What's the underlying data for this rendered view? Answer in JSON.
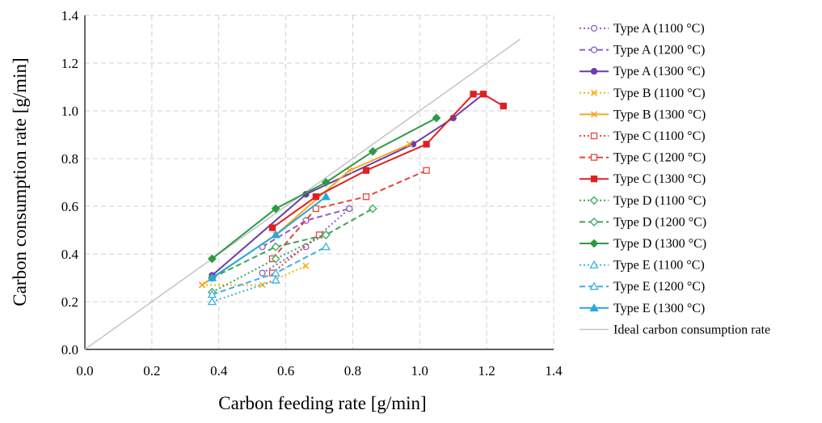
{
  "chart_data": {
    "type": "line",
    "title": "",
    "xlabel": "Carbon feeding rate [g/min]",
    "ylabel": "Carbon consumption rate [g/min]",
    "xlim": [
      0,
      1.4
    ],
    "ylim": [
      0,
      1.4
    ],
    "xticks": [
      "0.0",
      "0.2",
      "0.4",
      "0.6",
      "0.8",
      "1.0",
      "1.2",
      "1.4"
    ],
    "yticks": [
      "0.0",
      "0.2",
      "0.4",
      "0.6",
      "0.8",
      "1.0",
      "1.2",
      "1.4"
    ],
    "grid": true,
    "legend_position": "right",
    "series": [
      {
        "name": "Type A (1100 °C)",
        "color": "#8e5cc9",
        "dash": "dotted",
        "marker": "circle-open",
        "x": [
          0.53,
          0.66,
          0.79
        ],
        "y": [
          0.32,
          0.43,
          0.59
        ]
      },
      {
        "name": "Type A (1200 °C)",
        "color": "#8e5cc9",
        "dash": "dashed",
        "marker": "circle-open",
        "x": [
          0.53,
          0.66,
          0.79
        ],
        "y": [
          0.43,
          0.54,
          0.59
        ]
      },
      {
        "name": "Type A (1300 °C)",
        "color": "#6a3ea6",
        "dash": "solid",
        "marker": "circle-filled",
        "x": [
          0.38,
          0.66,
          0.98,
          1.1,
          1.19
        ],
        "y": [
          0.31,
          0.65,
          0.86,
          0.97,
          1.07
        ]
      },
      {
        "name": "Type B (1100 °C)",
        "color": "#f5b21f",
        "dash": "dotted",
        "marker": "x",
        "x": [
          0.35,
          0.53,
          0.66
        ],
        "y": [
          0.27,
          0.27,
          0.35
        ]
      },
      {
        "name": "Type B (1300 °C)",
        "color": "#f5a623",
        "dash": "solid",
        "marker": "x",
        "x": [
          0.35,
          0.57,
          0.79,
          0.97
        ],
        "y": [
          0.27,
          0.48,
          0.75,
          0.86
        ]
      },
      {
        "name": "Type C (1100 °C)",
        "color": "#e8453c",
        "dash": "dotted",
        "marker": "square-open",
        "x": [
          0.56,
          0.7
        ],
        "y": [
          0.32,
          0.48
        ]
      },
      {
        "name": "Type C (1200 °C)",
        "color": "#e8453c",
        "dash": "dashed",
        "marker": "square-open",
        "x": [
          0.56,
          0.69,
          0.84,
          1.02
        ],
        "y": [
          0.38,
          0.59,
          0.64,
          0.75
        ]
      },
      {
        "name": "Type C (1300 °C)",
        "color": "#e02020",
        "dash": "solid",
        "marker": "square-filled",
        "x": [
          0.56,
          0.69,
          0.84,
          1.02,
          1.16,
          1.19,
          1.25
        ],
        "y": [
          0.51,
          0.64,
          0.75,
          0.86,
          1.07,
          1.07,
          1.02
        ]
      },
      {
        "name": "Type D (1100 °C)",
        "color": "#3aa655",
        "dash": "dotted",
        "marker": "diamond-open",
        "x": [
          0.38,
          0.57,
          0.72
        ],
        "y": [
          0.24,
          0.38,
          0.48
        ]
      },
      {
        "name": "Type D (1200 °C)",
        "color": "#3aa655",
        "dash": "dashed",
        "marker": "diamond-open",
        "x": [
          0.38,
          0.57,
          0.72,
          0.86
        ],
        "y": [
          0.3,
          0.43,
          0.48,
          0.59
        ]
      },
      {
        "name": "Type D (1300 °C)",
        "color": "#2e9a44",
        "dash": "solid",
        "marker": "diamond-filled",
        "x": [
          0.38,
          0.57,
          0.72,
          0.86,
          1.05
        ],
        "y": [
          0.38,
          0.59,
          0.7,
          0.83,
          0.97
        ]
      },
      {
        "name": "Type E (1100 °C)",
        "color": "#3ab0e6",
        "dash": "dotted",
        "marker": "triangle-open",
        "x": [
          0.38,
          0.57
        ],
        "y": [
          0.2,
          0.29
        ]
      },
      {
        "name": "Type E (1200 °C)",
        "color": "#3ab0e6",
        "dash": "dashed",
        "marker": "triangle-open",
        "x": [
          0.38,
          0.57,
          0.72
        ],
        "y": [
          0.23,
          0.32,
          0.43
        ]
      },
      {
        "name": "Type E (1300 °C)",
        "color": "#2aa6e0",
        "dash": "solid",
        "marker": "triangle-filled",
        "x": [
          0.38,
          0.57,
          0.72
        ],
        "y": [
          0.3,
          0.48,
          0.64
        ]
      },
      {
        "name": "Ideal carbon consumption rate",
        "color": "#c4c4c4",
        "dash": "solid",
        "marker": "none",
        "x": [
          0,
          1.3
        ],
        "y": [
          0,
          1.3
        ]
      }
    ]
  }
}
